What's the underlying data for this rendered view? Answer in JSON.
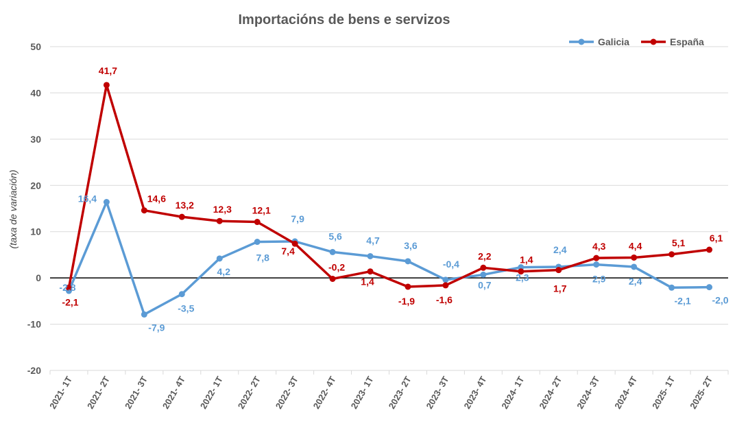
{
  "chart_data": {
    "type": "line",
    "title": "Importacións de bens e servizos",
    "xlabel": "",
    "ylabel": "(taxa de variación)",
    "ylim": [
      -20,
      50
    ],
    "yticks": [
      -20,
      -10,
      0,
      10,
      20,
      30,
      40,
      50
    ],
    "categories": [
      "2021- 1T",
      "2021- 2T",
      "2021- 3T",
      "2021- 4T",
      "2022- 1T",
      "2022- 2T",
      "2022- 3T",
      "2022- 4T",
      "2023- 1T",
      "2023- 2T",
      "2023- 3T",
      "2023- 4T",
      "2024- 1T",
      "2024- 2T",
      "2024- 3T",
      "2024- 4T",
      "2025- 1T",
      "2025- 2T"
    ],
    "series": [
      {
        "name": "Galicia",
        "color": "#5B9BD5",
        "values": [
          -2.8,
          16.4,
          -7.9,
          -3.5,
          4.2,
          7.8,
          7.9,
          5.6,
          4.7,
          3.6,
          -0.4,
          0.7,
          2.3,
          2.4,
          2.9,
          2.4,
          -2.1,
          -2.0
        ],
        "labels": [
          "-2,8",
          "16,4",
          "-7,9",
          "-3,5",
          "4,2",
          "7,8",
          "7,9",
          "5,6",
          "4,7",
          "3,6",
          "-0,4",
          "0,7",
          "2,3",
          "2,4",
          "2,9",
          "2,4",
          "-2,1",
          "-2,0"
        ]
      },
      {
        "name": "España",
        "color": "#C00000",
        "values": [
          -2.1,
          41.7,
          14.6,
          13.2,
          12.3,
          12.1,
          7.4,
          -0.2,
          1.4,
          -1.9,
          -1.6,
          2.2,
          1.4,
          1.7,
          4.3,
          4.4,
          5.1,
          6.1
        ],
        "labels": [
          "-2,1",
          "41,7",
          "14,6",
          "13,2",
          "12,3",
          "12,1",
          "7,4",
          "-0,2",
          "1,4",
          "-1,9",
          "-1,6",
          "2,2",
          "1,4",
          "1,7",
          "4,3",
          "4,4",
          "5,1",
          "6,1"
        ]
      }
    ],
    "legend": "top-right",
    "grid": true
  }
}
